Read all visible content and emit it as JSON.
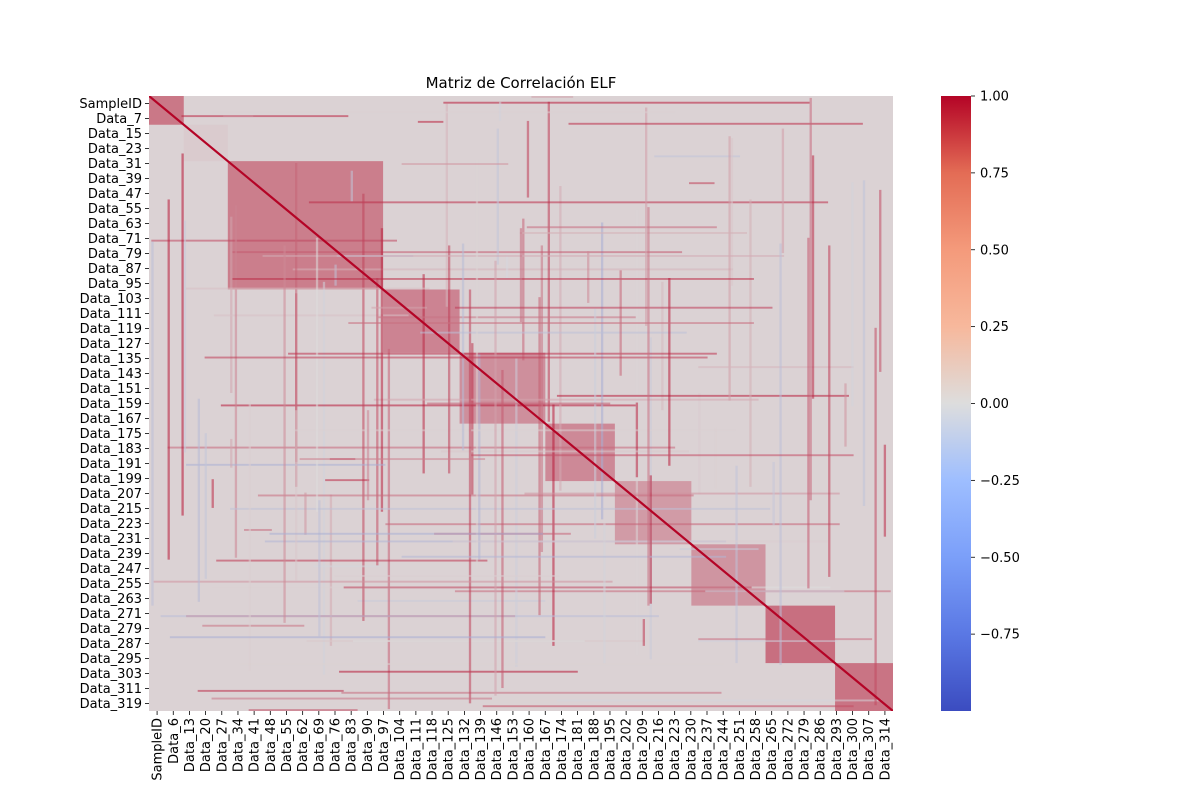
{
  "chart_data": {
    "type": "heatmap",
    "title": "Matriz de Correlación ELF",
    "xlabel": "",
    "ylabel": "",
    "colormap": "coolwarm",
    "colors": {
      "low": "#3b4cc0",
      "mid": "#dddddd",
      "high": "#b40426"
    },
    "vmin": -1.0,
    "vmax": 1.0,
    "n_variables": 321,
    "row_labels": [
      "SampleID",
      "Data_7",
      "Data_15",
      "Data_23",
      "Data_31",
      "Data_39",
      "Data_47",
      "Data_55",
      "Data_63",
      "Data_71",
      "Data_79",
      "Data_87",
      "Data_95",
      "Data_103",
      "Data_111",
      "Data_119",
      "Data_127",
      "Data_135",
      "Data_143",
      "Data_151",
      "Data_159",
      "Data_167",
      "Data_175",
      "Data_183",
      "Data_191",
      "Data_199",
      "Data_207",
      "Data_215",
      "Data_223",
      "Data_231",
      "Data_239",
      "Data_247",
      "Data_255",
      "Data_263",
      "Data_271",
      "Data_279",
      "Data_287",
      "Data_295",
      "Data_303",
      "Data_311",
      "Data_319"
    ],
    "col_labels": [
      "SampleID",
      "Data_6",
      "Data_13",
      "Data_20",
      "Data_27",
      "Data_34",
      "Data_41",
      "Data_48",
      "Data_55",
      "Data_62",
      "Data_69",
      "Data_76",
      "Data_83",
      "Data_90",
      "Data_97",
      "Data_104",
      "Data_111",
      "Data_118",
      "Data_125",
      "Data_132",
      "Data_139",
      "Data_146",
      "Data_153",
      "Data_160",
      "Data_167",
      "Data_174",
      "Data_181",
      "Data_188",
      "Data_195",
      "Data_202",
      "Data_209",
      "Data_216",
      "Data_223",
      "Data_230",
      "Data_237",
      "Data_244",
      "Data_251",
      "Data_258",
      "Data_265",
      "Data_272",
      "Data_279",
      "Data_286",
      "Data_293",
      "Data_300",
      "Data_307",
      "Data_314"
    ],
    "colorbar_ticks": [
      "1.00",
      "0.75",
      "0.50",
      "0.25",
      "0.00",
      "−0.25",
      "−0.50",
      "−0.75"
    ],
    "colorbar_values": [
      1.0,
      0.75,
      0.5,
      0.25,
      0.0,
      -0.25,
      -0.5,
      -0.75
    ],
    "blocks": [
      {
        "from": 0,
        "to": 14,
        "value": 0.85
      },
      {
        "from": 15,
        "to": 33,
        "value": 0.15
      },
      {
        "from": 34,
        "to": 100,
        "value": 0.8
      },
      {
        "from": 101,
        "to": 133,
        "value": 0.75
      },
      {
        "from": 134,
        "to": 170,
        "value": 0.65
      },
      {
        "from": 171,
        "to": 200,
        "value": 0.7
      },
      {
        "from": 201,
        "to": 233,
        "value": 0.55
      },
      {
        "from": 234,
        "to": 265,
        "value": 0.6
      },
      {
        "from": 266,
        "to": 295,
        "value": 0.92
      },
      {
        "from": 296,
        "to": 320,
        "value": 0.88
      }
    ],
    "background_value": 0.05
  }
}
